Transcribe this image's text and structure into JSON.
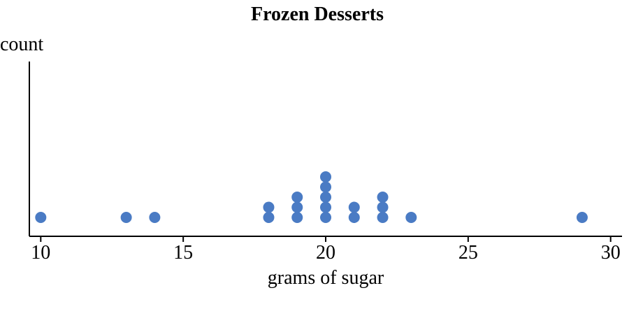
{
  "chart_data": {
    "type": "scatter",
    "subtype": "dot-plot",
    "title": "Frozen Desserts",
    "xlabel": "grams of sugar",
    "ylabel": "count",
    "xlim": [
      9.6,
      30.4
    ],
    "xticks": [
      10,
      15,
      20,
      25,
      30
    ],
    "grid": false,
    "marker_color": "#4a7bc4",
    "series": [
      {
        "x": [
          10,
          13,
          14,
          18,
          18,
          19,
          19,
          19,
          20,
          20,
          20,
          20,
          20,
          21,
          21,
          22,
          22,
          22,
          23,
          29
        ],
        "y": [
          1,
          1,
          1,
          1,
          2,
          1,
          2,
          3,
          1,
          2,
          3,
          4,
          5,
          1,
          2,
          1,
          2,
          3,
          1,
          1
        ]
      }
    ]
  }
}
